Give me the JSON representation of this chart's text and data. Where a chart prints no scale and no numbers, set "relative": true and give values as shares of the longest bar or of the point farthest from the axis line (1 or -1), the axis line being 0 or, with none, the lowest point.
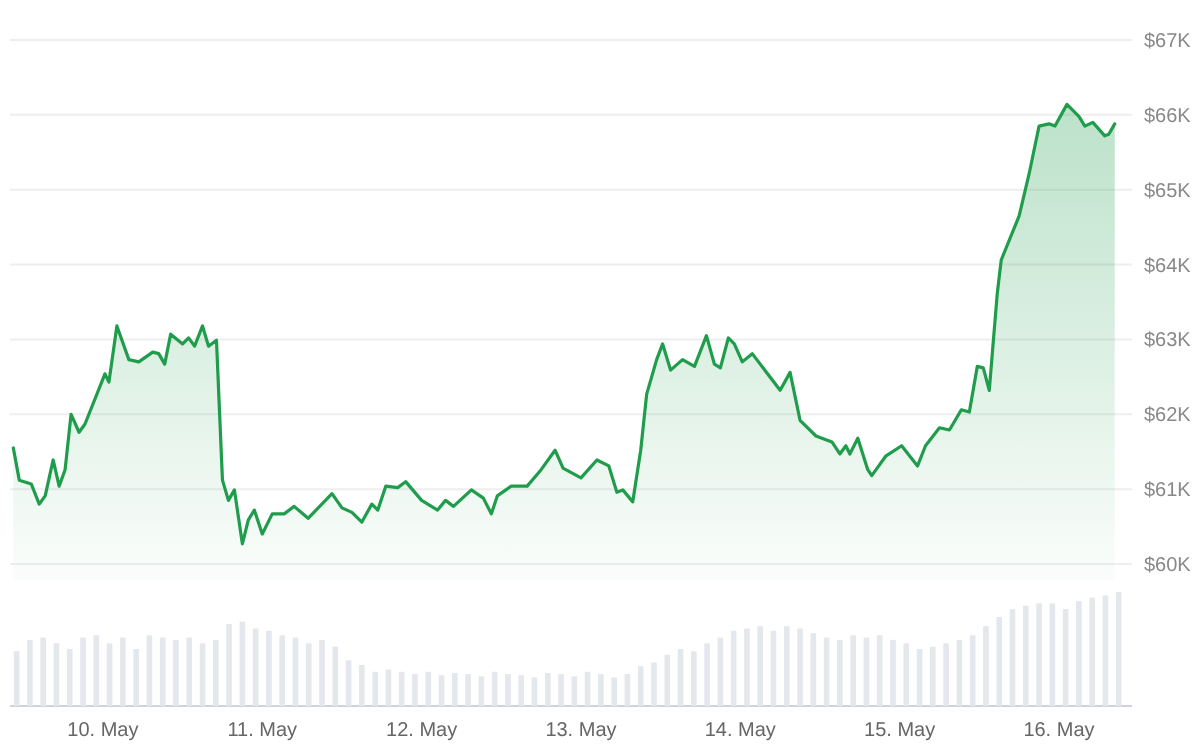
{
  "chart_data": [
    {
      "type": "area",
      "x": [
        "--05-09T10:30",
        "--05-09T11:24",
        "--05-09T13:12",
        "--05-09T14:24",
        "--05-09T15:18",
        "--05-09T16:30",
        "--05-09T17:24",
        "--05-09T18:18",
        "--05-09T19:12",
        "--05-09T20:24",
        "--05-09T21:18",
        "--05-10T00:18",
        "--05-10T00:54",
        "--05-10T02:06",
        "--05-10T03:54",
        "--05-10T05:24",
        "--05-10T07:30",
        "--05-10T08:24",
        "--05-10T09:18",
        "--05-10T10:12",
        "--05-10T12:00",
        "--05-10T12:54",
        "--05-10T13:48",
        "--05-10T15:00",
        "--05-10T15:54",
        "--05-10T17:06",
        "--05-10T18:00",
        "--05-10T18:54",
        "--05-10T19:48",
        "--05-10T21:00",
        "--05-10T21:54",
        "--05-10T22:48",
        "--05-11T00:00",
        "--05-11T01:30",
        "--05-11T03:18",
        "--05-11T04:48",
        "--05-11T06:54",
        "--05-11T10:30",
        "--05-11T12:00",
        "--05-11T13:30",
        "--05-11T15:00",
        "--05-11T16:30",
        "--05-11T17:24",
        "--05-11T18:36",
        "--05-11T20:24",
        "--05-11T21:36",
        "--05-12T00:00",
        "--05-12T02:24",
        "--05-12T03:36",
        "--05-12T04:48",
        "--05-12T07:30",
        "--05-12T09:18",
        "--05-12T10:30",
        "--05-12T11:24",
        "--05-12T13:30",
        "--05-12T15:54",
        "--05-12T18:00",
        "--05-12T20:06",
        "--05-12T21:18",
        "--05-13T00:00",
        "--05-13T02:24",
        "--05-13T04:12",
        "--05-13T05:24",
        "--05-13T06:18",
        "--05-13T07:48",
        "--05-13T09:00",
        "--05-13T09:54",
        "--05-13T11:24",
        "--05-13T12:18",
        "--05-13T13:30",
        "--05-13T15:18",
        "--05-13T17:06",
        "--05-13T18:54",
        "--05-13T20:06",
        "--05-13T21:00",
        "--05-13T22:12",
        "--05-13T23:06",
        "--05-14T00:18",
        "--05-14T01:48",
        "--05-14T06:00",
        "--05-14T07:30",
        "--05-14T09:00",
        "--05-14T11:24",
        "--05-14T13:48",
        "--05-14T15:00",
        "--05-14T15:54",
        "--05-14T16:30",
        "--05-14T17:42",
        "--05-14T19:12",
        "--05-14T19:48",
        "--05-14T21:54",
        "--05-15T00:18",
        "--05-15T02:42",
        "--05-15T03:54",
        "--05-15T06:00",
        "--05-15T07:30",
        "--05-15T09:18",
        "--05-15T10:30",
        "--05-15T11:42",
        "--05-15T12:36",
        "--05-15T13:30",
        "--05-15T14:42",
        "--05-15T15:18",
        "--05-15T18:00",
        "--05-15T19:30",
        "--05-15T21:00",
        "--05-15T22:30",
        "--05-15T23:24",
        "--05-16T01:12",
        "--05-16T03:00",
        "--05-16T03:54",
        "--05-16T05:06",
        "--05-16T06:54",
        "--05-16T07:30",
        "--05-16T08:24"
      ],
      "series": [
        {
          "color": "#1f9d4c",
          "values": [
            61.55,
            61.12,
            61.07,
            60.8,
            60.91,
            61.39,
            61.04,
            61.26,
            62.0,
            61.76,
            61.87,
            62.54,
            62.43,
            63.18,
            62.73,
            62.7,
            62.83,
            62.81,
            62.67,
            63.07,
            62.94,
            63.02,
            62.91,
            63.18,
            62.91,
            62.99,
            61.12,
            60.85,
            60.99,
            60.27,
            60.59,
            60.72,
            60.4,
            60.67,
            60.67,
            60.77,
            60.61,
            60.94,
            60.75,
            60.69,
            60.56,
            60.8,
            60.72,
            61.04,
            61.02,
            61.1,
            60.85,
            60.72,
            60.85,
            60.77,
            60.99,
            60.88,
            60.67,
            60.91,
            61.04,
            61.04,
            61.26,
            61.52,
            61.28,
            61.15,
            61.39,
            61.31,
            60.96,
            60.99,
            60.83,
            61.52,
            62.27,
            62.73,
            62.94,
            62.59,
            62.73,
            62.64,
            63.05,
            62.67,
            62.62,
            63.02,
            62.94,
            62.7,
            62.81,
            62.32,
            62.56,
            61.92,
            61.71,
            61.63,
            61.47,
            61.58,
            61.47,
            61.68,
            61.26,
            61.18,
            61.44,
            61.58,
            61.31,
            61.58,
            61.82,
            61.79,
            62.06,
            62.03,
            62.64,
            62.62,
            62.32,
            63.61,
            64.06,
            64.65,
            65.21,
            65.85,
            65.88,
            65.85,
            66.14,
            65.98,
            65.85,
            65.9,
            65.72,
            65.74,
            65.88
          ]
        }
      ],
      "xlim": [
        "--05-09T10:00",
        "--05-16T11:00"
      ],
      "ylim": [
        60,
        67
      ],
      "yticks": [
        {
          "value": 60,
          "label": "$60K"
        },
        {
          "value": 61,
          "label": "$61K"
        },
        {
          "value": 62,
          "label": "$62K"
        },
        {
          "value": 63,
          "label": "$63K"
        },
        {
          "value": 64,
          "label": "$64K"
        },
        {
          "value": 65,
          "label": "$65K"
        },
        {
          "value": 66,
          "label": "$66K"
        },
        {
          "value": 67,
          "label": "$67K"
        }
      ],
      "grid": "y",
      "tick_labels": "y"
    },
    {
      "type": "bar",
      "relative": true,
      "color": "#e4e7eb",
      "x": [
        "--05-09T11:00",
        "--05-09T13:00",
        "--05-09T15:00",
        "--05-09T17:00",
        "--05-09T19:00",
        "--05-09T21:00",
        "--05-09T23:00",
        "--05-10T01:00",
        "--05-10T03:00",
        "--05-10T05:00",
        "--05-10T07:00",
        "--05-10T09:00",
        "--05-10T11:00",
        "--05-10T13:00",
        "--05-10T15:00",
        "--05-10T17:00",
        "--05-10T19:00",
        "--05-10T21:00",
        "--05-10T23:00",
        "--05-11T01:00",
        "--05-11T03:00",
        "--05-11T05:00",
        "--05-11T07:00",
        "--05-11T09:00",
        "--05-11T11:00",
        "--05-11T13:00",
        "--05-11T15:00",
        "--05-11T17:00",
        "--05-11T19:00",
        "--05-11T21:00",
        "--05-11T23:00",
        "--05-12T01:00",
        "--05-12T03:00",
        "--05-12T05:00",
        "--05-12T07:00",
        "--05-12T09:00",
        "--05-12T11:00",
        "--05-12T13:00",
        "--05-12T15:00",
        "--05-12T17:00",
        "--05-12T19:00",
        "--05-12T21:00",
        "--05-12T23:00",
        "--05-13T01:00",
        "--05-13T03:00",
        "--05-13T05:00",
        "--05-13T07:00",
        "--05-13T09:00",
        "--05-13T11:00",
        "--05-13T13:00",
        "--05-13T15:00",
        "--05-13T17:00",
        "--05-13T19:00",
        "--05-13T21:00",
        "--05-13T23:00",
        "--05-14T01:00",
        "--05-14T03:00",
        "--05-14T05:00",
        "--05-14T07:00",
        "--05-14T09:00",
        "--05-14T11:00",
        "--05-14T13:00",
        "--05-14T15:00",
        "--05-14T17:00",
        "--05-14T19:00",
        "--05-14T21:00",
        "--05-14T23:00",
        "--05-15T01:00",
        "--05-15T03:00",
        "--05-15T05:00",
        "--05-15T07:00",
        "--05-15T09:00",
        "--05-15T11:00",
        "--05-15T13:00",
        "--05-15T15:00",
        "--05-15T17:00",
        "--05-15T19:00",
        "--05-15T21:00",
        "--05-15T23:00",
        "--05-16T01:00",
        "--05-16T03:00",
        "--05-16T05:00",
        "--05-16T07:00",
        "--05-16T09:00"
      ],
      "values": [
        0.48,
        0.58,
        0.6,
        0.55,
        0.5,
        0.6,
        0.62,
        0.55,
        0.6,
        0.5,
        0.62,
        0.6,
        0.58,
        0.6,
        0.55,
        0.58,
        0.72,
        0.74,
        0.68,
        0.66,
        0.62,
        0.6,
        0.55,
        0.58,
        0.52,
        0.4,
        0.36,
        0.3,
        0.32,
        0.3,
        0.28,
        0.3,
        0.27,
        0.29,
        0.28,
        0.26,
        0.3,
        0.28,
        0.27,
        0.25,
        0.29,
        0.28,
        0.26,
        0.3,
        0.28,
        0.25,
        0.28,
        0.35,
        0.38,
        0.45,
        0.5,
        0.48,
        0.55,
        0.6,
        0.66,
        0.68,
        0.7,
        0.66,
        0.7,
        0.68,
        0.64,
        0.6,
        0.58,
        0.62,
        0.6,
        0.62,
        0.58,
        0.55,
        0.5,
        0.52,
        0.55,
        0.58,
        0.62,
        0.7,
        0.78,
        0.85,
        0.88,
        0.9,
        0.9,
        0.85,
        0.92,
        0.95,
        0.97,
        1.0
      ],
      "xlim": [
        "--05-09T10:00",
        "--05-16T11:00"
      ],
      "xticks": [
        {
          "value": "--05-10",
          "label": "10. May"
        },
        {
          "value": "--05-11",
          "label": "11. May"
        },
        {
          "value": "--05-12",
          "label": "12. May"
        },
        {
          "value": "--05-13",
          "label": "13. May"
        },
        {
          "value": "--05-14",
          "label": "14. May"
        },
        {
          "value": "--05-15",
          "label": "15. May"
        },
        {
          "value": "--05-16",
          "label": "16. May"
        }
      ],
      "tick_labels": "x"
    }
  ]
}
